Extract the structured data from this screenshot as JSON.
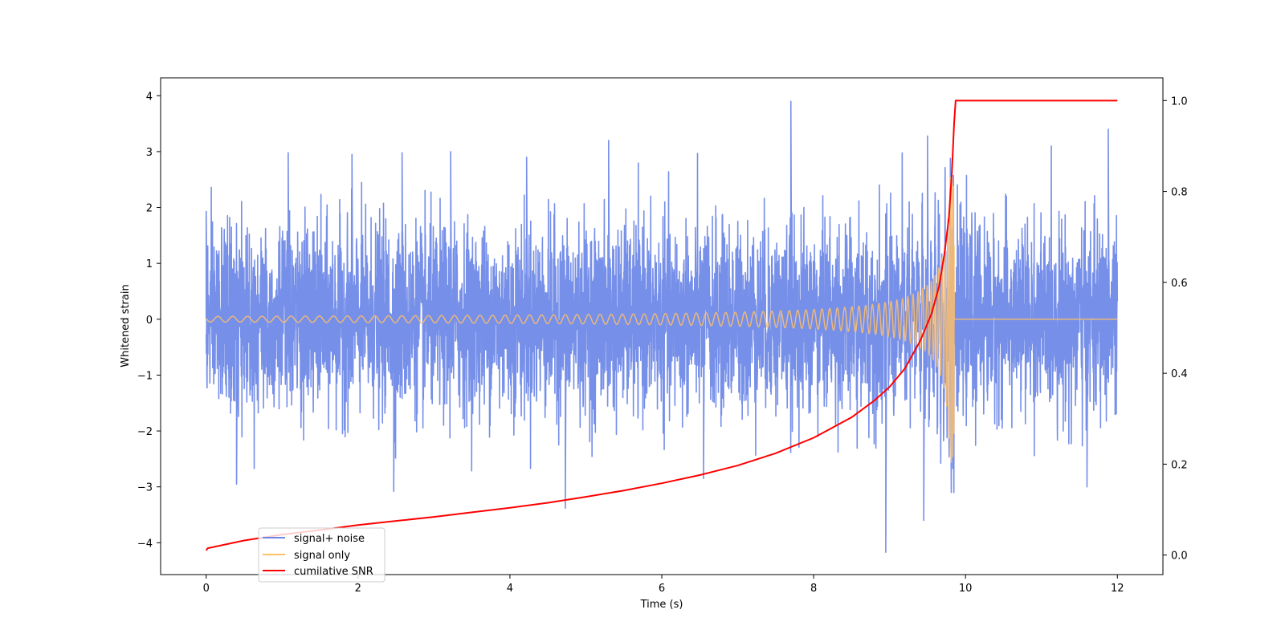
{
  "chart_data": {
    "type": "line",
    "title": "",
    "xlabel": "Time (s)",
    "ylabel": "Whitened strain",
    "y2label": "",
    "xlim": [
      -0.6,
      12.6
    ],
    "ylim": [
      -4.57,
      4.32
    ],
    "y2lim": [
      -0.043,
      1.05
    ],
    "xticks": [
      0,
      2,
      4,
      6,
      8,
      10,
      12
    ],
    "yticks": [
      -4,
      -3,
      -2,
      -1,
      0,
      1,
      2,
      3,
      4
    ],
    "y2ticks": [
      0.0,
      0.2,
      0.4,
      0.6,
      0.8,
      1.0
    ],
    "ytick_labels": [
      "−4",
      "−3",
      "−2",
      "−1",
      "0",
      "1",
      "2",
      "3",
      "4"
    ],
    "y2tick_labels": [
      "0.0",
      "0.2",
      "0.4",
      "0.6",
      "0.8",
      "1.0"
    ],
    "xtick_labels": [
      "0",
      "2",
      "4",
      "6",
      "8",
      "10",
      "12"
    ],
    "grid": false,
    "legend_position": "lower-left",
    "series": [
      {
        "name": "signal+ noise",
        "axis": "left",
        "color": "#6a86e6",
        "noise_sigma": 0.95,
        "t_start": 0,
        "t_end": 12,
        "peaks": [
          [
            0.0,
            1.93
          ],
          [
            1.08,
            2.98
          ],
          [
            1.92,
            2.95
          ],
          [
            2.58,
            2.98
          ],
          [
            3.22,
            3.0
          ],
          [
            4.22,
            2.9
          ],
          [
            5.3,
            3.2
          ],
          [
            7.7,
            3.9
          ],
          [
            9.5,
            3.28
          ],
          [
            11.88,
            3.4
          ],
          [
            0.4,
            -2.95
          ],
          [
            2.47,
            -3.08
          ],
          [
            4.73,
            -3.38
          ],
          [
            8.95,
            -4.17
          ],
          [
            9.45,
            -3.6
          ],
          [
            11.6,
            -3.0
          ],
          [
            6.55,
            -2.85
          ]
        ]
      },
      {
        "name": "signal only",
        "axis": "left",
        "color": "#ffbf6a",
        "t_start": 0,
        "t_end": 12,
        "merger_time": 9.85,
        "amplitude_start": 0.05,
        "amplitude_peak": 2.6
      },
      {
        "name": "cumilative SNR",
        "axis": "right",
        "color": "#ff0000",
        "points": [
          [
            0.0,
            0.01
          ],
          [
            0.02,
            0.015
          ],
          [
            0.5,
            0.032
          ],
          [
            1.0,
            0.045
          ],
          [
            1.5,
            0.055
          ],
          [
            2.0,
            0.066
          ],
          [
            2.5,
            0.075
          ],
          [
            3.0,
            0.084
          ],
          [
            3.5,
            0.094
          ],
          [
            4.0,
            0.104
          ],
          [
            4.5,
            0.115
          ],
          [
            5.0,
            0.128
          ],
          [
            5.5,
            0.142
          ],
          [
            6.0,
            0.158
          ],
          [
            6.5,
            0.176
          ],
          [
            7.0,
            0.197
          ],
          [
            7.5,
            0.224
          ],
          [
            8.0,
            0.258
          ],
          [
            8.5,
            0.303
          ],
          [
            8.8,
            0.34
          ],
          [
            9.0,
            0.37
          ],
          [
            9.2,
            0.41
          ],
          [
            9.4,
            0.47
          ],
          [
            9.55,
            0.53
          ],
          [
            9.65,
            0.59
          ],
          [
            9.72,
            0.66
          ],
          [
            9.78,
            0.74
          ],
          [
            9.82,
            0.84
          ],
          [
            9.85,
            0.95
          ],
          [
            9.87,
            1.0
          ],
          [
            12.0,
            1.0
          ]
        ]
      }
    ]
  }
}
